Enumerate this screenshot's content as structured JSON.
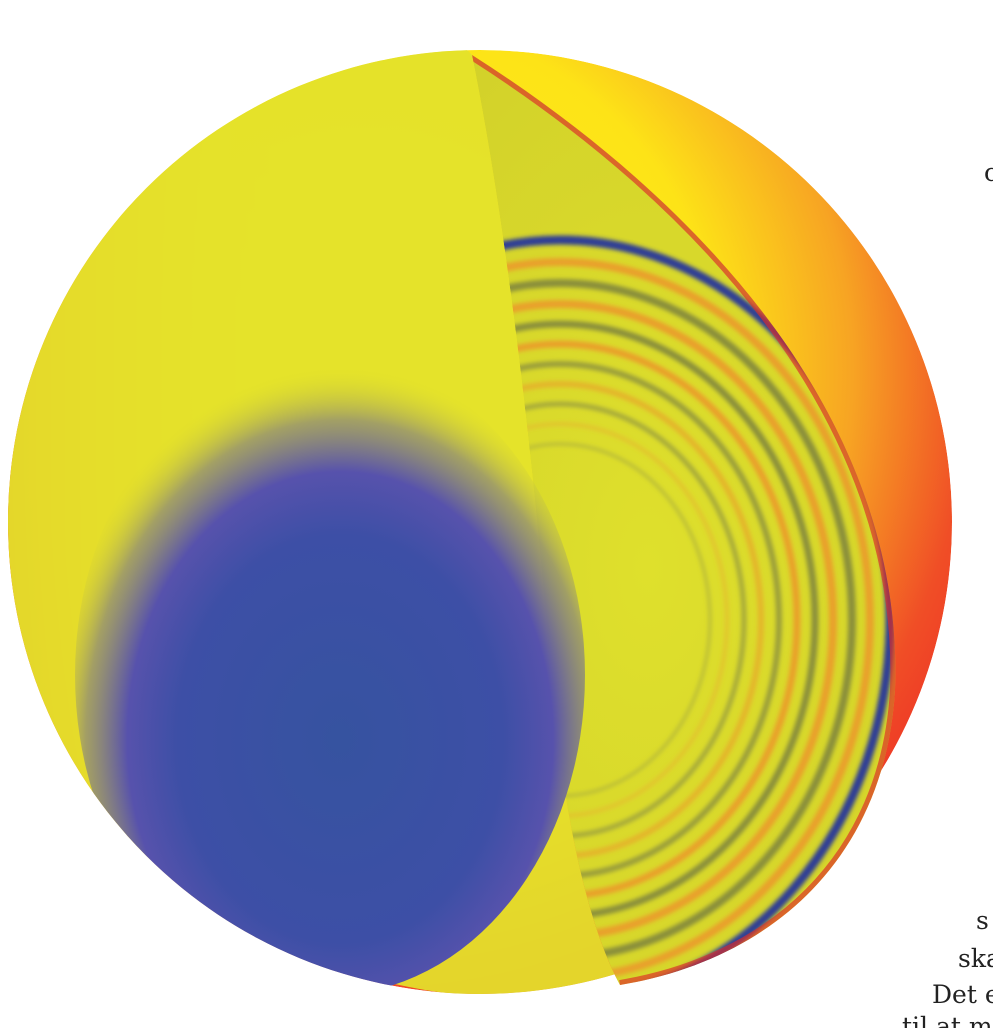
{
  "illustration": {
    "colors": {
      "outer_red": "#ec2027",
      "outer_orange": "#f4772a",
      "outer_yellow": "#fde317",
      "interior_yellow": "#dadb2a",
      "ring_orange": "#e9a02b",
      "ring_olive": "#8a8f3a",
      "ring_deep_blue": "#2e3d95",
      "core_blue": "#3752a1",
      "core_violet": "#5a55ad"
    },
    "icons": [
      "sphere-cutaway-icon"
    ]
  },
  "text_fragments": [
    {
      "text": "c"
    },
    {
      "text": "s"
    },
    {
      "text": "skal"
    },
    {
      "text": "Det en"
    },
    {
      "text": "til  at  måle"
    }
  ]
}
